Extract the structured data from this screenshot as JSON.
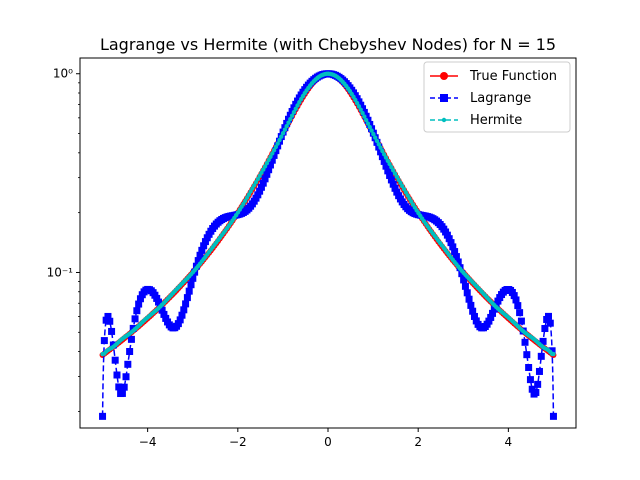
{
  "chart_data": {
    "type": "line",
    "title": "Lagrange vs Hermite (with Chebyshev Nodes) for N = 15",
    "xlabel": "",
    "ylabel": "",
    "xlim": [
      -5.5,
      5.5
    ],
    "ylim": [
      0.0165,
      1.2
    ],
    "yscale": "log",
    "grid": false,
    "legend_position": "top-right",
    "x_ticks": [
      -4,
      -2,
      0,
      2,
      4
    ],
    "x_tick_labels": [
      "−4",
      "−2",
      "0",
      "2",
      "4"
    ],
    "y_ticks": [
      0.1,
      1
    ],
    "y_tick_labels": [
      "10⁻¹",
      "10⁰"
    ],
    "x_range": [
      -5,
      5
    ],
    "series": [
      {
        "name": "True Function",
        "color": "#ff0000",
        "linestyle": "solid",
        "marker": "circle",
        "formula": "1 / (1 + x^2)",
        "samples": 1000
      },
      {
        "name": "Lagrange",
        "color": "#0000ff",
        "linestyle": "dashed",
        "marker": "square",
        "formula": "Lagrange interpolant of 1 / (1 + x^2) on 15 Chebyshev nodes",
        "samples": 1000
      },
      {
        "name": "Hermite",
        "color": "#00bfbf",
        "linestyle": "dashed",
        "marker": "dot",
        "formula": "Hermite interpolant of 1 / (1 + x^2) on 15 Chebyshev nodes",
        "samples": 1000
      }
    ]
  }
}
